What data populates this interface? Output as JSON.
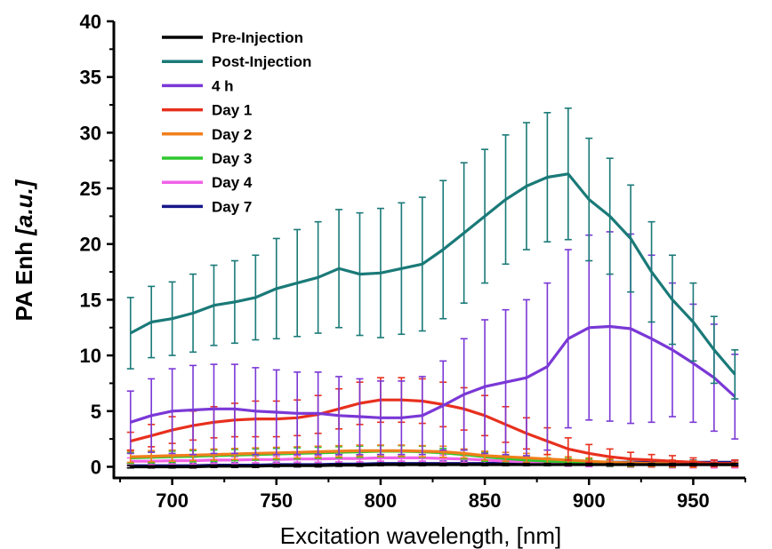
{
  "chart_data": {
    "type": "line",
    "title": "",
    "xlabel": "Excitation wavelength, [nm]",
    "ylabel_main": "PA Enh ",
    "ylabel_unit": "[a.u.]",
    "xlim": [
      672,
      975
    ],
    "ylim": [
      -1,
      40
    ],
    "xticks": [
      700,
      750,
      800,
      850,
      900,
      950
    ],
    "yticks": [
      0,
      5,
      10,
      15,
      20,
      25,
      30,
      35,
      40
    ],
    "legend_position": "top-left",
    "x": [
      680,
      690,
      700,
      710,
      720,
      730,
      740,
      750,
      760,
      770,
      780,
      790,
      800,
      810,
      820,
      830,
      840,
      850,
      860,
      870,
      880,
      890,
      900,
      910,
      920,
      930,
      940,
      950,
      960,
      970
    ],
    "series": [
      {
        "name": "Pre-Injection",
        "color": "#000000",
        "values": [
          0.0,
          0.0,
          0.0,
          0.0,
          0.05,
          0.05,
          0.05,
          0.1,
          0.1,
          0.1,
          0.15,
          0.15,
          0.2,
          0.2,
          0.2,
          0.2,
          0.2,
          0.2,
          0.2,
          0.2,
          0.2,
          0.2,
          0.2,
          0.2,
          0.2,
          0.2,
          0.2,
          0.2,
          0.2,
          0.2
        ],
        "errors": [
          0.1,
          0.1,
          0.1,
          0.1,
          0.1,
          0.1,
          0.1,
          0.1,
          0.1,
          0.1,
          0.1,
          0.1,
          0.1,
          0.1,
          0.1,
          0.1,
          0.1,
          0.1,
          0.1,
          0.1,
          0.1,
          0.1,
          0.1,
          0.1,
          0.1,
          0.1,
          0.1,
          0.1,
          0.1,
          0.1
        ]
      },
      {
        "name": "Post-Injection",
        "color": "#1a7a78",
        "values": [
          12.0,
          13.0,
          13.3,
          13.8,
          14.5,
          14.8,
          15.2,
          16.0,
          16.5,
          17.0,
          17.8,
          17.3,
          17.4,
          17.8,
          18.2,
          19.5,
          21.0,
          22.5,
          24.0,
          25.2,
          26.0,
          26.3,
          24.0,
          22.5,
          20.5,
          17.5,
          15.0,
          13.0,
          10.5,
          8.3
        ],
        "errors": [
          3.2,
          3.2,
          3.3,
          3.5,
          3.6,
          3.7,
          3.8,
          4.5,
          4.8,
          5.0,
          5.3,
          5.5,
          5.8,
          5.9,
          6.0,
          6.2,
          6.3,
          6.0,
          5.8,
          5.7,
          5.8,
          5.9,
          5.5,
          5.2,
          4.8,
          4.5,
          4.0,
          3.5,
          3.0,
          2.2
        ]
      },
      {
        "name": "4 h",
        "color": "#7a38d6",
        "values": [
          4.0,
          4.6,
          5.0,
          5.1,
          5.2,
          5.2,
          5.0,
          4.9,
          4.8,
          4.8,
          4.6,
          4.5,
          4.4,
          4.4,
          4.6,
          5.5,
          6.5,
          7.2,
          7.6,
          8.0,
          9.0,
          11.5,
          12.5,
          12.6,
          12.4,
          11.5,
          10.5,
          9.3,
          8.0,
          6.3
        ],
        "errors": [
          2.8,
          3.3,
          3.8,
          4.0,
          4.0,
          4.0,
          3.9,
          3.8,
          3.7,
          3.7,
          3.5,
          3.4,
          3.3,
          3.3,
          3.5,
          4.0,
          5.0,
          6.0,
          6.5,
          7.0,
          7.5,
          8.0,
          8.3,
          8.5,
          8.5,
          7.5,
          6.0,
          5.3,
          4.8,
          3.8
        ]
      },
      {
        "name": "Day 1",
        "color": "#e8301e",
        "values": [
          2.3,
          2.8,
          3.3,
          3.7,
          4.0,
          4.2,
          4.3,
          4.3,
          4.4,
          4.7,
          5.2,
          5.7,
          6.0,
          6.0,
          5.9,
          5.6,
          5.2,
          4.6,
          3.8,
          3.0,
          2.3,
          1.6,
          1.2,
          0.9,
          0.7,
          0.6,
          0.5,
          0.4,
          0.3,
          0.3
        ],
        "errors": [
          0.8,
          1.0,
          1.2,
          1.3,
          1.4,
          1.5,
          1.6,
          1.6,
          1.6,
          1.7,
          1.8,
          1.9,
          2.0,
          2.0,
          2.0,
          2.0,
          1.9,
          1.8,
          1.6,
          1.4,
          1.2,
          1.0,
          0.8,
          0.7,
          0.6,
          0.5,
          0.5,
          0.4,
          0.3,
          0.3
        ]
      },
      {
        "name": "Day 2",
        "color": "#f07f1c",
        "values": [
          0.9,
          0.95,
          1.0,
          1.05,
          1.1,
          1.15,
          1.2,
          1.25,
          1.3,
          1.35,
          1.4,
          1.45,
          1.45,
          1.45,
          1.4,
          1.35,
          1.2,
          1.0,
          0.9,
          0.8,
          0.7,
          0.6,
          0.5,
          0.4,
          0.35,
          0.3,
          0.3,
          0.25,
          0.2,
          0.2
        ],
        "errors": [
          0.5,
          0.5,
          0.5,
          0.5,
          0.5,
          0.5,
          0.5,
          0.5,
          0.5,
          0.5,
          0.5,
          0.5,
          0.5,
          0.5,
          0.5,
          0.5,
          0.4,
          0.4,
          0.4,
          0.4,
          0.4,
          0.3,
          0.3,
          0.3,
          0.3,
          0.3,
          0.3,
          0.3,
          0.2,
          0.2
        ]
      },
      {
        "name": "Day 3",
        "color": "#2ec82e",
        "values": [
          0.8,
          0.85,
          0.9,
          0.95,
          1.0,
          1.05,
          1.1,
          1.15,
          1.2,
          1.25,
          1.3,
          1.35,
          1.4,
          1.4,
          1.35,
          1.25,
          1.1,
          0.9,
          0.75,
          0.6,
          0.5,
          0.45,
          0.4,
          0.35,
          0.3,
          0.3,
          0.25,
          0.25,
          0.2,
          0.2
        ],
        "errors": [
          0.5,
          0.5,
          0.5,
          0.5,
          0.5,
          0.5,
          0.5,
          0.5,
          0.5,
          0.5,
          0.5,
          0.5,
          0.5,
          0.5,
          0.5,
          0.4,
          0.4,
          0.4,
          0.3,
          0.3,
          0.3,
          0.3,
          0.3,
          0.3,
          0.3,
          0.3,
          0.3,
          0.3,
          0.2,
          0.2
        ]
      },
      {
        "name": "Day 4",
        "color": "#f062e8",
        "values": [
          0.5,
          0.5,
          0.55,
          0.55,
          0.6,
          0.6,
          0.65,
          0.65,
          0.7,
          0.7,
          0.75,
          0.75,
          0.8,
          0.8,
          0.8,
          0.75,
          0.7,
          0.6,
          0.5,
          0.45,
          0.4,
          0.35,
          0.3,
          0.3,
          0.25,
          0.25,
          0.2,
          0.2,
          0.2,
          0.2
        ],
        "errors": [
          0.3,
          0.3,
          0.3,
          0.3,
          0.3,
          0.3,
          0.3,
          0.3,
          0.3,
          0.3,
          0.3,
          0.3,
          0.3,
          0.3,
          0.3,
          0.3,
          0.3,
          0.3,
          0.3,
          0.3,
          0.3,
          0.3,
          0.3,
          0.3,
          0.3,
          0.3,
          0.3,
          0.3,
          0.3,
          0.3
        ]
      },
      {
        "name": "Day 7",
        "color": "#18188a",
        "values": [
          0.1,
          0.1,
          0.1,
          0.1,
          0.15,
          0.15,
          0.15,
          0.2,
          0.2,
          0.2,
          0.25,
          0.25,
          0.3,
          0.3,
          0.3,
          0.3,
          0.3,
          0.3,
          0.35,
          0.35,
          0.35,
          0.35,
          0.4,
          0.4,
          0.4,
          0.4,
          0.4,
          0.4,
          0.4,
          0.4
        ],
        "errors": [
          0.2,
          0.2,
          0.2,
          0.2,
          0.2,
          0.2,
          0.2,
          0.2,
          0.2,
          0.2,
          0.2,
          0.2,
          0.2,
          0.2,
          0.2,
          0.2,
          0.2,
          0.2,
          0.2,
          0.2,
          0.2,
          0.2,
          0.2,
          0.2,
          0.2,
          0.2,
          0.2,
          0.2,
          0.2,
          0.2
        ]
      }
    ]
  }
}
